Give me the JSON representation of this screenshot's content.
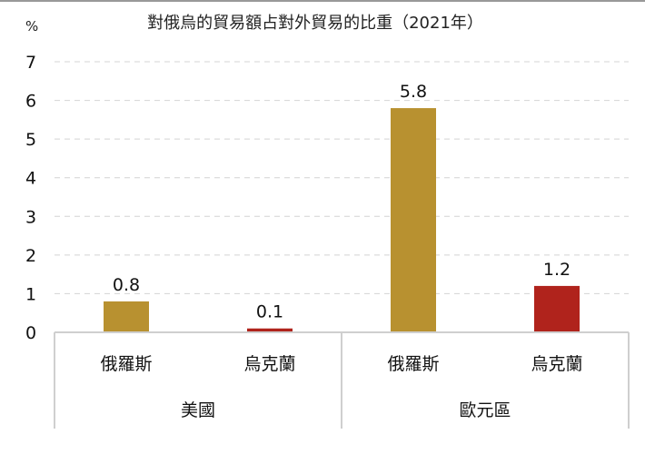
{
  "chart_data": {
    "type": "bar",
    "title": "對俄烏的貿易額占對外貿易的比重（2021年）",
    "unit": "%",
    "ylim": [
      0,
      7
    ],
    "yticks": [
      0,
      1,
      2,
      3,
      4,
      5,
      6,
      7
    ],
    "grid": true,
    "groups": [
      {
        "name": "美國",
        "bars": [
          {
            "category": "俄羅斯",
            "value": 0.8,
            "label": "0.8",
            "color": "#B89130"
          },
          {
            "category": "烏克蘭",
            "value": 0.1,
            "label": "0.1",
            "color": "#B0231C"
          }
        ]
      },
      {
        "name": "歐元區",
        "bars": [
          {
            "category": "俄羅斯",
            "value": 5.8,
            "label": "5.8",
            "color": "#B89130"
          },
          {
            "category": "烏克蘭",
            "value": 1.2,
            "label": "1.2",
            "color": "#B0231C"
          }
        ]
      }
    ]
  }
}
